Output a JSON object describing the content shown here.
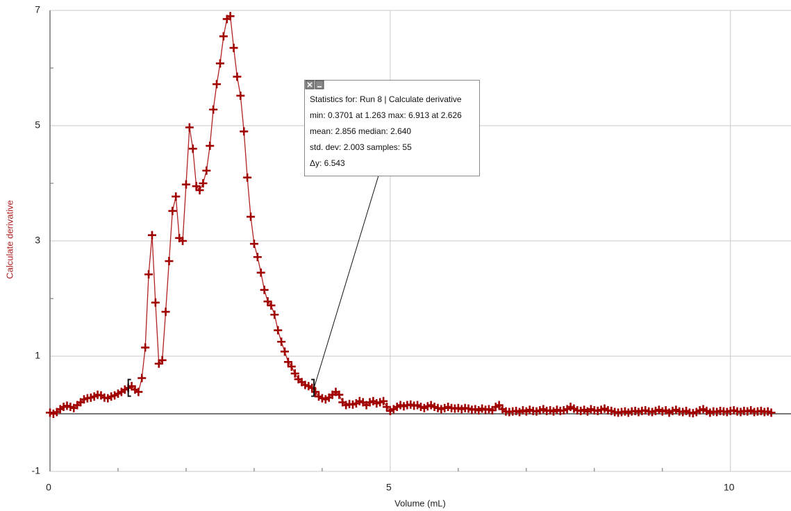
{
  "chart_data": {
    "type": "line",
    "x_label": "Volume (mL)",
    "y_label": "Calculate derivative",
    "xlim": [
      0,
      10.89
    ],
    "ylim": [
      -1,
      7
    ],
    "xticks": [
      0,
      5,
      10
    ],
    "yticks": [
      -1,
      1,
      3,
      5,
      7
    ],
    "xminorticks": [
      1,
      2,
      3,
      4,
      6,
      7,
      8,
      9
    ],
    "yminorticks": [
      0,
      2,
      4,
      6
    ],
    "grid": true,
    "color": "#a00000",
    "line_color": "#b22222",
    "selection_range": [
      1.15,
      3.88
    ],
    "stats": {
      "title": "Statistics for: Run 8 | Calculate derivative",
      "lines": [
        "min: 0.3701 at 1.263 max: 6.913 at 2.626",
        "mean: 2.856 median: 2.640",
        "std. dev: 2.003 samples: 55",
        "Δy: 6.543"
      ]
    },
    "x": [
      0,
      0.05,
      0.1,
      0.15,
      0.2,
      0.25,
      0.3,
      0.35,
      0.4,
      0.45,
      0.5,
      0.55,
      0.6,
      0.65,
      0.7,
      0.75,
      0.8,
      0.85,
      0.9,
      0.95,
      1,
      1.05,
      1.1,
      1.15,
      1.2,
      1.25,
      1.3,
      1.35,
      1.4,
      1.45,
      1.5,
      1.55,
      1.6,
      1.65,
      1.7,
      1.75,
      1.8,
      1.85,
      1.9,
      1.95,
      2,
      2.05,
      2.1,
      2.15,
      2.2,
      2.25,
      2.3,
      2.35,
      2.4,
      2.45,
      2.5,
      2.55,
      2.6,
      2.65,
      2.7,
      2.75,
      2.8,
      2.85,
      2.9,
      2.95,
      3,
      3.05,
      3.1,
      3.15,
      3.2,
      3.25,
      3.3,
      3.35,
      3.4,
      3.45,
      3.5,
      3.55,
      3.6,
      3.65,
      3.7,
      3.75,
      3.8,
      3.85,
      3.9,
      3.95,
      4,
      4.05,
      4.1,
      4.15,
      4.2,
      4.25,
      4.3,
      4.35,
      4.4,
      4.45,
      4.5,
      4.55,
      4.6,
      4.65,
      4.7,
      4.75,
      4.8,
      4.85,
      4.9,
      4.95,
      5,
      5.05,
      5.1,
      5.15,
      5.2,
      5.25,
      5.3,
      5.35,
      5.4,
      5.45,
      5.5,
      5.55,
      5.6,
      5.65,
      5.7,
      5.75,
      5.8,
      5.85,
      5.9,
      5.95,
      6,
      6.05,
      6.1,
      6.15,
      6.2,
      6.25,
      6.3,
      6.35,
      6.4,
      6.45,
      6.5,
      6.55,
      6.6,
      6.65,
      6.7,
      6.75,
      6.8,
      6.85,
      6.9,
      6.95,
      7,
      7.05,
      7.1,
      7.15,
      7.2,
      7.25,
      7.3,
      7.35,
      7.4,
      7.45,
      7.5,
      7.55,
      7.6,
      7.65,
      7.7,
      7.75,
      7.8,
      7.85,
      7.9,
      7.95,
      8,
      8.05,
      8.1,
      8.15,
      8.2,
      8.25,
      8.3,
      8.35,
      8.4,
      8.45,
      8.5,
      8.55,
      8.6,
      8.65,
      8.7,
      8.75,
      8.8,
      8.85,
      8.9,
      8.95,
      9,
      9.05,
      9.1,
      9.15,
      9.2,
      9.25,
      9.3,
      9.35,
      9.4,
      9.45,
      9.5,
      9.55,
      9.6,
      9.65,
      9.7,
      9.75,
      9.8,
      9.85,
      9.9,
      9.95,
      10,
      10.05,
      10.1,
      10.15,
      10.2,
      10.25,
      10.3,
      10.35,
      10.4,
      10.45,
      10.5,
      10.55,
      10.6
    ],
    "values": [
      0.02,
      0.0,
      0.03,
      0.08,
      0.12,
      0.14,
      0.12,
      0.1,
      0.15,
      0.2,
      0.25,
      0.27,
      0.28,
      0.3,
      0.33,
      0.32,
      0.28,
      0.27,
      0.3,
      0.32,
      0.35,
      0.38,
      0.42,
      0.45,
      0.48,
      0.42,
      0.38,
      0.62,
      1.15,
      2.42,
      3.1,
      1.93,
      0.87,
      0.93,
      1.77,
      2.65,
      3.52,
      3.77,
      3.05,
      3.0,
      3.98,
      4.97,
      4.6,
      3.95,
      3.88,
      4.0,
      4.22,
      4.65,
      5.28,
      5.72,
      6.08,
      6.55,
      6.85,
      6.9,
      6.35,
      5.85,
      5.52,
      4.9,
      4.1,
      3.42,
      2.95,
      2.72,
      2.45,
      2.15,
      1.95,
      1.88,
      1.72,
      1.45,
      1.25,
      1.08,
      0.9,
      0.82,
      0.7,
      0.6,
      0.55,
      0.5,
      0.48,
      0.45,
      0.38,
      0.3,
      0.27,
      0.25,
      0.28,
      0.33,
      0.38,
      0.33,
      0.2,
      0.15,
      0.17,
      0.16,
      0.18,
      0.22,
      0.2,
      0.15,
      0.2,
      0.22,
      0.18,
      0.2,
      0.22,
      0.12,
      0.05,
      0.08,
      0.12,
      0.15,
      0.13,
      0.15,
      0.16,
      0.14,
      0.15,
      0.12,
      0.1,
      0.13,
      0.15,
      0.12,
      0.1,
      0.08,
      0.1,
      0.12,
      0.1,
      0.09,
      0.1,
      0.08,
      0.1,
      0.09,
      0.07,
      0.08,
      0.06,
      0.09,
      0.07,
      0.08,
      0.06,
      0.12,
      0.15,
      0.08,
      0.04,
      0.03,
      0.04,
      0.05,
      0.03,
      0.06,
      0.04,
      0.07,
      0.05,
      0.04,
      0.06,
      0.08,
      0.05,
      0.06,
      0.04,
      0.07,
      0.05,
      0.06,
      0.08,
      0.12,
      0.09,
      0.06,
      0.05,
      0.07,
      0.04,
      0.08,
      0.06,
      0.05,
      0.07,
      0.09,
      0.06,
      0.05,
      0.03,
      0.02,
      0.03,
      0.04,
      0.02,
      0.04,
      0.05,
      0.03,
      0.05,
      0.06,
      0.04,
      0.03,
      0.05,
      0.07,
      0.04,
      0.06,
      0.02,
      0.05,
      0.07,
      0.04,
      0.03,
      0.05,
      0.02,
      0.01,
      0.03,
      0.06,
      0.08,
      0.05,
      0.02,
      0.04,
      0.03,
      0.05,
      0.04,
      0.03,
      0.05,
      0.06,
      0.04,
      0.03,
      0.05,
      0.04,
      0.06,
      0.03,
      0.04,
      0.05,
      0.03,
      0.04,
      0.02
    ]
  }
}
